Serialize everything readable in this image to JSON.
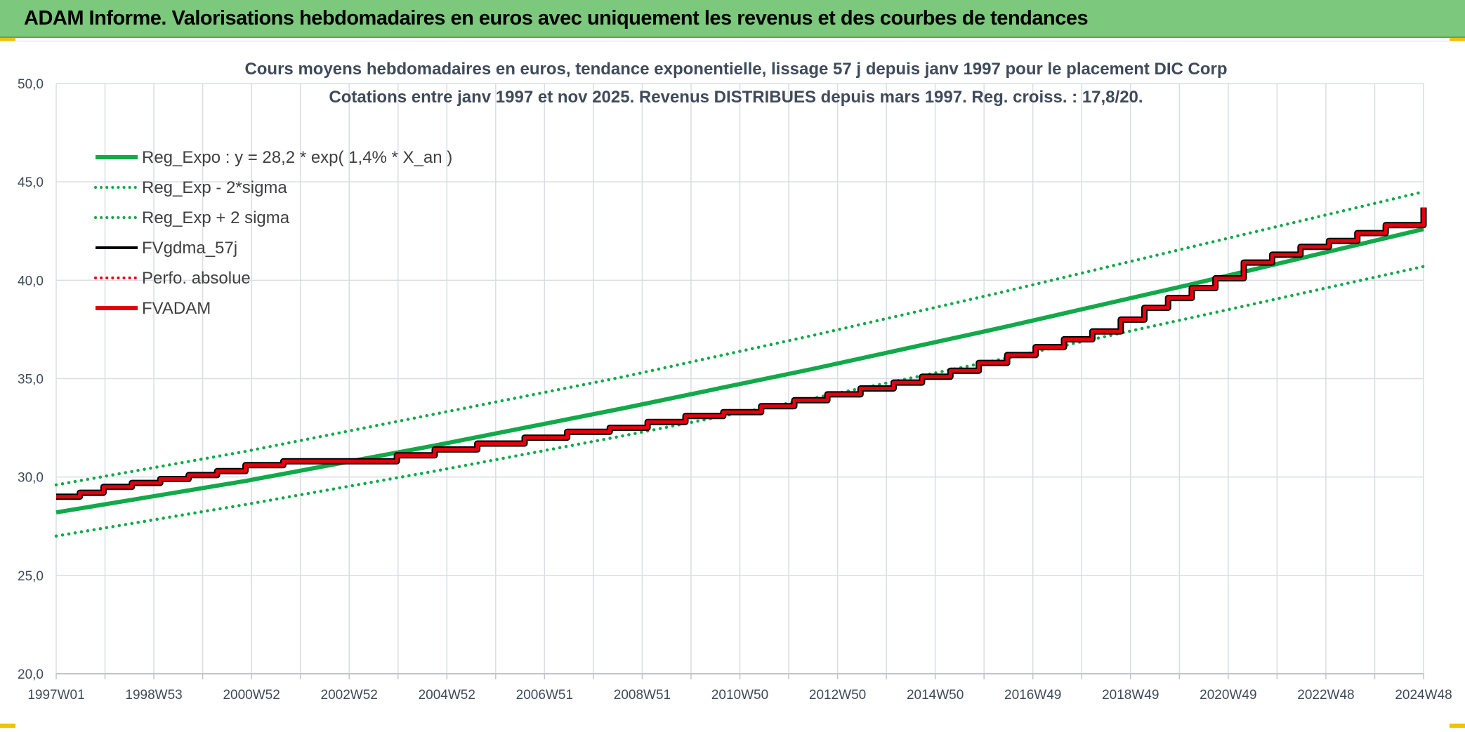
{
  "header": {
    "title": "ADAM Informe. Valorisations hebdomadaires en euros avec uniquement les revenus et des courbes de tendances"
  },
  "colors": {
    "header_bg": "#7cc87c",
    "grid": "#d9dde3",
    "axis_text": "#3f4a5a",
    "title_text": "#3f4a5a",
    "green": "#12a94a",
    "black": "#000000",
    "red": "#e5000d"
  },
  "chart_data": {
    "type": "line",
    "title_lines": [
      "Cours moyens hebdomadaires en euros, tendance exponentielle, lissage 57 j depuis janv 1997 pour le placement DIC Corp",
      "Cotations entre janv 1997 et nov 2025. Revenus DISTRIBUES depuis mars 1997. Reg. croiss. : 17,8/20."
    ],
    "xlabel": "",
    "ylabel": "",
    "xlim": [
      1997.0,
      2025.9
    ],
    "ylim": [
      20,
      50
    ],
    "yticks": [
      "20,0",
      "25,0",
      "30,0",
      "35,0",
      "40,0",
      "45,0",
      "50,0"
    ],
    "xtick_labels": [
      "1997W01",
      "1998W53",
      "2000W52",
      "2002W52",
      "2004W52",
      "2006W51",
      "2008W51",
      "2010W50",
      "2012W50",
      "2014W50",
      "2016W49",
      "2018W49",
      "2020W49",
      "2022W48",
      "2024W48"
    ],
    "grid": true,
    "legend_position": "top-left",
    "legend": [
      {
        "label": "Reg_Expo : y = 28,2 * exp( 1,4% *  X_an )",
        "color": "#12a94a",
        "style": "solid-thick"
      },
      {
        "label": "Reg_Exp - 2*sigma",
        "color": "#12a94a",
        "style": "dotted"
      },
      {
        "label": "Reg_Exp + 2 sigma",
        "color": "#12a94a",
        "style": "dotted"
      },
      {
        "label": "FVgdma_57j",
        "color": "#000000",
        "style": "solid"
      },
      {
        "label": "Perfo. absolue",
        "color": "#e5000d",
        "style": "dotted"
      },
      {
        "label": "FVADAM",
        "color": "#e5000d",
        "style": "solid-thick"
      }
    ],
    "series": [
      {
        "name": "Reg_Expo",
        "x": [
          1997.0,
          2001.0,
          2005.0,
          2009.0,
          2013.0,
          2017.0,
          2021.0,
          2025.9
        ],
        "values": [
          28.2,
          29.8,
          31.6,
          33.5,
          35.5,
          37.6,
          39.8,
          42.6
        ]
      },
      {
        "name": "Reg_Exp - 2*sigma",
        "x": [
          1997.0,
          2001.0,
          2005.0,
          2009.0,
          2013.0,
          2017.0,
          2021.0,
          2025.9
        ],
        "values": [
          27.0,
          28.6,
          30.3,
          32.1,
          34.0,
          36.0,
          38.1,
          40.7
        ]
      },
      {
        "name": "Reg_Exp + 2 sigma",
        "x": [
          1997.0,
          2001.0,
          2005.0,
          2009.0,
          2013.0,
          2017.0,
          2021.0,
          2025.9
        ],
        "values": [
          29.6,
          31.3,
          33.2,
          35.1,
          37.2,
          39.4,
          41.7,
          44.5
        ]
      },
      {
        "name": "FVADAM",
        "x": [
          1997.0,
          1997.5,
          1998.0,
          1998.6,
          1999.2,
          1999.8,
          2000.4,
          2001.0,
          2001.8,
          2003.0,
          2004.2,
          2005.0,
          2005.9,
          2006.9,
          2007.8,
          2008.7,
          2009.5,
          2010.3,
          2011.1,
          2011.9,
          2012.6,
          2013.3,
          2014.0,
          2014.7,
          2015.3,
          2015.9,
          2016.5,
          2017.1,
          2017.7,
          2018.3,
          2018.9,
          2019.5,
          2020.0,
          2020.5,
          2021.0,
          2021.5,
          2022.1,
          2022.7,
          2023.3,
          2023.9,
          2024.5,
          2025.1,
          2025.9
        ],
        "values": [
          29.0,
          29.2,
          29.5,
          29.7,
          29.9,
          30.1,
          30.3,
          30.6,
          30.8,
          30.8,
          31.1,
          31.4,
          31.7,
          32.0,
          32.3,
          32.5,
          32.8,
          33.1,
          33.3,
          33.6,
          33.9,
          34.2,
          34.5,
          34.8,
          35.1,
          35.4,
          35.8,
          36.2,
          36.6,
          37.0,
          37.4,
          38.0,
          38.6,
          39.1,
          39.6,
          40.1,
          40.9,
          41.3,
          41.7,
          42.0,
          42.4,
          42.8,
          43.7
        ]
      }
    ]
  }
}
